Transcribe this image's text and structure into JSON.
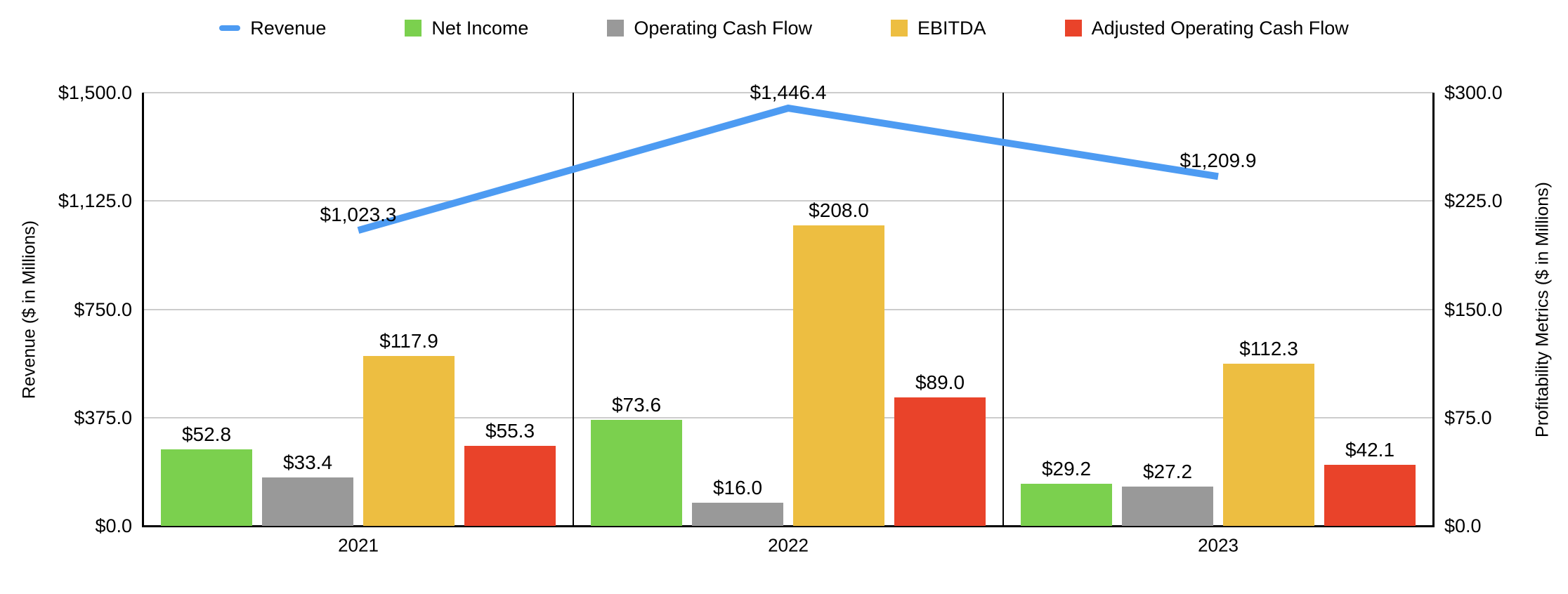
{
  "legend": [
    {
      "label": "Revenue",
      "color": "#4D9BF2",
      "marker": "line"
    },
    {
      "label": "Net Income",
      "color": "#7BD04E",
      "marker": "square"
    },
    {
      "label": "Operating Cash Flow",
      "color": "#999999",
      "marker": "square"
    },
    {
      "label": "EBITDA",
      "color": "#EDBE41",
      "marker": "square"
    },
    {
      "label": "Adjusted Operating Cash Flow",
      "color": "#E9432A",
      "marker": "square"
    }
  ],
  "left_axis": {
    "title": "Revenue ($ in Millions)",
    "ticks": [
      "$1,500.0",
      "$1,125.0",
      "$750.0",
      "$375.0",
      "$0.0"
    ],
    "min": 0,
    "max": 1500
  },
  "right_axis": {
    "title": "Profitability Metrics ($ in Millions)",
    "ticks": [
      "$300.0",
      "$225.0",
      "$150.0",
      "$75.0",
      "$0.0"
    ],
    "min": 0,
    "max": 300
  },
  "chart_data": {
    "type": "combo: line + grouped bar",
    "categories": [
      "2021",
      "2022",
      "2023"
    ],
    "line_series": {
      "name": "Revenue",
      "axis": "left",
      "color": "#4D9BF2",
      "values": [
        1023.3,
        1446.4,
        1209.9
      ],
      "labels": [
        "$1,023.3",
        "$1,446.4",
        "$1,209.9"
      ]
    },
    "series": [
      {
        "name": "Net Income",
        "axis": "right",
        "color": "#7BD04E",
        "values": [
          52.8,
          73.6,
          29.2
        ],
        "labels": [
          "$52.8",
          "$73.6",
          "$29.2"
        ]
      },
      {
        "name": "Operating Cash Flow",
        "axis": "right",
        "color": "#999999",
        "values": [
          33.4,
          16.0,
          27.2
        ],
        "labels": [
          "$33.4",
          "$16.0",
          "$27.2"
        ]
      },
      {
        "name": "EBITDA",
        "axis": "right",
        "color": "#EDBE41",
        "values": [
          117.9,
          208.0,
          112.3
        ],
        "labels": [
          "$117.9",
          "$208.0",
          "$112.3"
        ]
      },
      {
        "name": "Adjusted Operating Cash Flow",
        "axis": "right",
        "color": "#E9432A",
        "values": [
          55.3,
          89.0,
          42.1
        ],
        "labels": [
          "$55.3",
          "$89.0",
          "$42.1"
        ]
      }
    ],
    "left_ylim": [
      0,
      1500
    ],
    "right_ylim": [
      0,
      300
    ],
    "grid": "horizontal",
    "legend_position": "top",
    "group_dividers": true
  }
}
